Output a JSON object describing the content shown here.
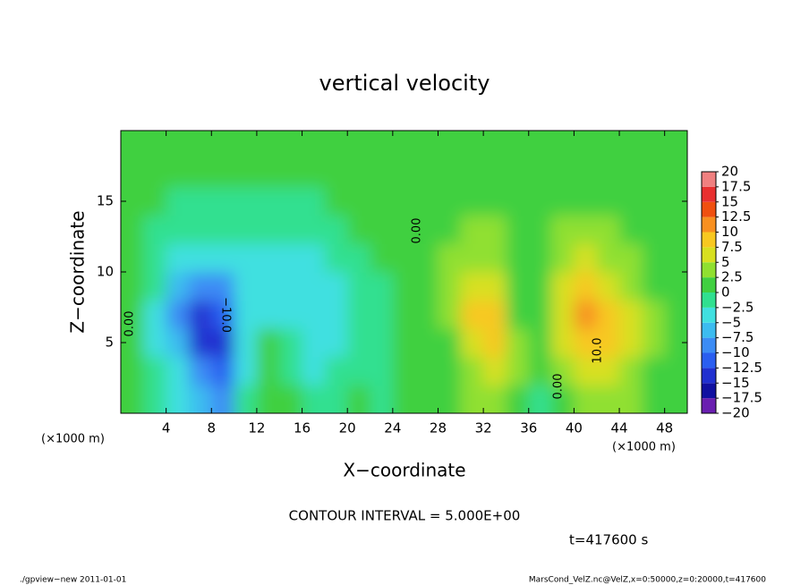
{
  "chart_data": {
    "type": "heatmap",
    "title": "vertical velocity",
    "x_label": "X−coordinate",
    "y_label": "Z−coordinate",
    "x_unit": "(×1000 m)",
    "y_unit": "(×1000 m)",
    "xlim": [
      0,
      50
    ],
    "ylim": [
      0,
      20
    ],
    "xticks": [
      4,
      8,
      12,
      16,
      20,
      24,
      28,
      32,
      36,
      40,
      44,
      48
    ],
    "yticks": [
      5,
      10,
      15
    ],
    "x": [
      1,
      3,
      5,
      7,
      9,
      11,
      13,
      15,
      17,
      19,
      21,
      23,
      25,
      27,
      29,
      31,
      33,
      35,
      37,
      39,
      41,
      43,
      45,
      47,
      49
    ],
    "y": [
      1,
      3,
      5,
      7,
      9,
      11,
      13,
      15,
      17,
      19
    ],
    "z": [
      [
        0,
        -1,
        -3,
        -6,
        -8,
        -2,
        2,
        0,
        -1,
        -1,
        0,
        -1,
        1,
        1,
        2,
        3,
        4,
        2,
        -1,
        2,
        4,
        4,
        3,
        2,
        1
      ],
      [
        0,
        -2,
        -5,
        -10,
        -12,
        -3,
        2,
        -1,
        -3,
        -2,
        -1,
        -1,
        0,
        1,
        2,
        4,
        6,
        3,
        0,
        4,
        6,
        6,
        4,
        2,
        1
      ],
      [
        0,
        -3,
        -7,
        -13,
        -13,
        -4,
        1,
        -2,
        -4,
        -3,
        -2,
        -1,
        0,
        1,
        2,
        6,
        9,
        3,
        1,
        6,
        9,
        8,
        5,
        3,
        1
      ],
      [
        0,
        -3,
        -8,
        -14,
        -12,
        -5,
        -3,
        -3,
        -5,
        -4,
        -2,
        -1,
        0,
        1,
        3,
        8,
        8,
        2,
        2,
        6,
        11,
        9,
        5,
        3,
        1
      ],
      [
        0,
        -2,
        -6,
        -10,
        -8,
        -5,
        -3,
        -4,
        -5,
        -3,
        -1,
        -1,
        0,
        1,
        3,
        6,
        5,
        2,
        2,
        7,
        9,
        7,
        4,
        2,
        1
      ],
      [
        0,
        -1,
        -3,
        -4,
        -4,
        -3,
        -3,
        -3,
        -4,
        -2,
        -1,
        0,
        0,
        1,
        3,
        4,
        3,
        2,
        2,
        4,
        5,
        4,
        3,
        2,
        1
      ],
      [
        0,
        -1,
        -2,
        -2,
        -2,
        -2,
        -2,
        -2,
        -2,
        -1,
        0,
        0,
        0,
        1,
        2,
        3,
        3,
        2,
        2,
        3,
        3,
        3,
        2,
        1,
        1
      ],
      [
        0,
        0,
        -1,
        -1,
        -1,
        -1,
        -1,
        -1,
        -1,
        0,
        0,
        0,
        0,
        1,
        1,
        2,
        2,
        1,
        1,
        1,
        1,
        1,
        1,
        1,
        0
      ],
      [
        0,
        0,
        0,
        0,
        0,
        0,
        0,
        0,
        0,
        0,
        0,
        0,
        0,
        0,
        1,
        1,
        1,
        1,
        1,
        1,
        1,
        1,
        0,
        0,
        0
      ],
      [
        0,
        0,
        0,
        0,
        0,
        0,
        0,
        0,
        0,
        0,
        0,
        0,
        0,
        0,
        0,
        0,
        0,
        0,
        0,
        0,
        0,
        0,
        0,
        0,
        0
      ]
    ],
    "levels": [
      {
        "value": -20,
        "label": "−20"
      },
      {
        "value": -17.5,
        "label": "−17.5"
      },
      {
        "value": -15,
        "label": "−15"
      },
      {
        "value": -12.5,
        "label": "−12.5"
      },
      {
        "value": -10,
        "label": "−10"
      },
      {
        "value": -7.5,
        "label": "−7.5"
      },
      {
        "value": -5,
        "label": "−5"
      },
      {
        "value": -2.5,
        "label": "−2.5"
      },
      0,
      2.5,
      5,
      7.5,
      10,
      12.5,
      15,
      17.5,
      20
    ],
    "colors": [
      "#6a1fb0",
      "#1010a0",
      "#2030d0",
      "#2a5ef0",
      "#3c8cf5",
      "#3cbcf0",
      "#40e0e0",
      "#30e090",
      "#40d040",
      "#90e030",
      "#d8e020",
      "#f8c820",
      "#f89020",
      "#f05010",
      "#e83030",
      "#f08080"
    ],
    "contour_labels": [
      "0.00",
      "0.00",
      "−10.0",
      "10.0",
      "0.00"
    ],
    "contour_interval": "CONTOUR INTERVAL = 5.000E+00",
    "time": "t=417600 s",
    "footer_left": "./gpview−new  2011-01-01",
    "footer_right": "MarsCond_VelZ.nc@VelZ,x=0:50000,z=0:20000,t=417600"
  }
}
